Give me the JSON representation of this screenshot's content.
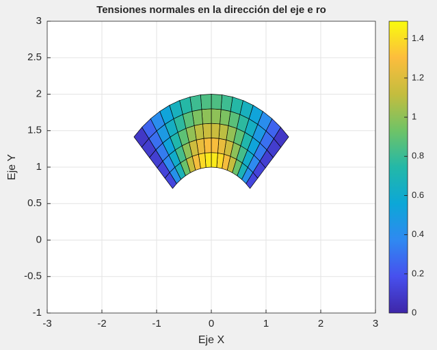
{
  "chart_data": {
    "type": "polar-mesh",
    "title": "Tensiones normales en la dirección del eje e ro",
    "x_label": "Eje X",
    "y_label": "Eje Y",
    "radii": [
      1,
      1.2,
      1.4,
      1.6,
      1.8,
      2
    ],
    "theta_deg": [
      45,
      50.625,
      56.25,
      61.875,
      67.5,
      73.125,
      78.75,
      84.375,
      90,
      95.625,
      101.25,
      106.875,
      112.5,
      118.125,
      123.75,
      129.375,
      135
    ],
    "values": [
      [
        0.14,
        0.42,
        0.68,
        0.92,
        1.12,
        1.28,
        1.39,
        1.44,
        1.44,
        1.39,
        1.28,
        1.12,
        0.92,
        0.68,
        0.42,
        0.14
      ],
      [
        0.13,
        0.38,
        0.61,
        0.83,
        1.0,
        1.15,
        1.24,
        1.29,
        1.29,
        1.24,
        1.15,
        1.0,
        0.83,
        0.61,
        0.38,
        0.13
      ],
      [
        0.11,
        0.33,
        0.54,
        0.73,
        0.89,
        1.01,
        1.1,
        1.14,
        1.14,
        1.1,
        1.01,
        0.89,
        0.73,
        0.54,
        0.33,
        0.11
      ],
      [
        0.1,
        0.29,
        0.47,
        0.64,
        0.77,
        0.88,
        0.96,
        1.0,
        1.0,
        0.96,
        0.88,
        0.77,
        0.64,
        0.47,
        0.29,
        0.1
      ],
      [
        0.08,
        0.25,
        0.4,
        0.54,
        0.66,
        0.75,
        0.81,
        0.85,
        0.85,
        0.81,
        0.75,
        0.66,
        0.54,
        0.4,
        0.25,
        0.08
      ]
    ],
    "xlim": [
      -3,
      3
    ],
    "xticks": [
      -3,
      -2,
      -1,
      0,
      1,
      2,
      3
    ],
    "ylim": [
      -1,
      3
    ],
    "yticks": [
      -1,
      -0.5,
      0,
      0.5,
      1,
      1.5,
      2,
      2.5,
      3
    ],
    "clim": [
      0,
      1.49
    ],
    "cticks": [
      0,
      0.2,
      0.4,
      0.6,
      0.8,
      1,
      1.2,
      1.4
    ],
    "colormap": [
      "#3e26a8",
      "#4750ee",
      "#2f89f1",
      "#0ca7d7",
      "#23b8a8",
      "#6fc367",
      "#c4bd3e",
      "#fcbd3d",
      "#f9fb0e"
    ],
    "grid": true
  }
}
